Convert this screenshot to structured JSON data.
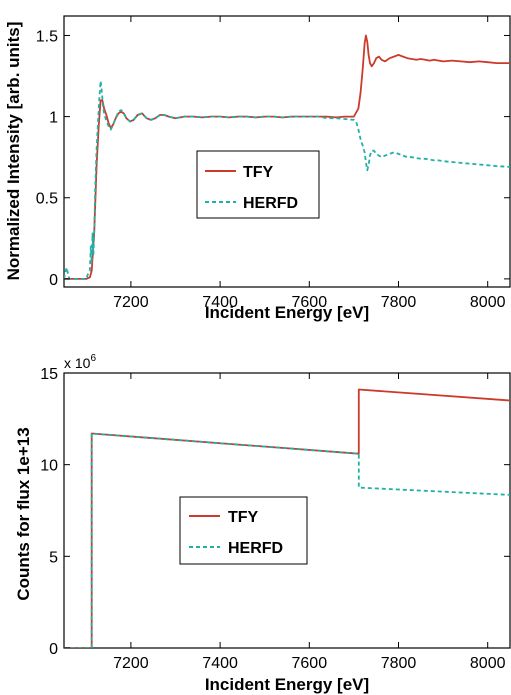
{
  "colors": {
    "tfy": "#cc3a2c",
    "herfd": "#21b0a4"
  },
  "chart_data": [
    {
      "type": "line",
      "title": "",
      "xlabel": "Incident Energy [eV]",
      "ylabel": "Normalized Intensity [arb. units]",
      "xlim": [
        7050,
        8050
      ],
      "ylim": [
        -0.05,
        1.62
      ],
      "xticks": [
        7200,
        7400,
        7600,
        7800,
        8000
      ],
      "xtick_labels": [
        "7200",
        "7400",
        "7600",
        "7800",
        "8000"
      ],
      "yticks": [
        0,
        0.5,
        1,
        1.5
      ],
      "ytick_labels": [
        "0",
        "0.5",
        "1",
        "1.5"
      ],
      "legend_position": "center",
      "grid": false,
      "series": [
        {
          "name": "TFY",
          "style": "solid",
          "color": "#cc3a2c",
          "x": [
            7050,
            7060,
            7070,
            7080,
            7090,
            7100,
            7108,
            7112,
            7118,
            7123,
            7128,
            7132,
            7136,
            7140,
            7145,
            7150,
            7155,
            7160,
            7166,
            7172,
            7178,
            7184,
            7190,
            7198,
            7206,
            7215,
            7225,
            7235,
            7245,
            7255,
            7265,
            7275,
            7285,
            7300,
            7320,
            7340,
            7360,
            7380,
            7400,
            7420,
            7440,
            7460,
            7480,
            7500,
            7520,
            7540,
            7560,
            7580,
            7600,
            7620,
            7640,
            7660,
            7680,
            7700,
            7710,
            7715,
            7720,
            7724,
            7727,
            7730,
            7733,
            7736,
            7740,
            7745,
            7750,
            7756,
            7762,
            7770,
            7780,
            7790,
            7800,
            7810,
            7820,
            7830,
            7840,
            7850,
            7860,
            7870,
            7880,
            7890,
            7900,
            7920,
            7940,
            7960,
            7980,
            8000,
            8020,
            8050
          ],
          "y": [
            0,
            0,
            0,
            0,
            0,
            0,
            0.01,
            0.05,
            0.3,
            0.7,
            0.95,
            1.1,
            1.1,
            1.05,
            1.01,
            0.96,
            0.93,
            0.95,
            0.99,
            1.02,
            1.03,
            1.02,
            0.99,
            0.97,
            0.98,
            1.01,
            1.02,
            0.99,
            0.98,
            0.99,
            1.01,
            1.01,
            1.0,
            0.99,
            1.0,
            1.0,
            0.995,
            1.0,
            1.0,
            0.995,
            1.0,
            1.0,
            0.995,
            1.0,
            1.0,
            0.995,
            1.0,
            1.0,
            1.0,
            1.0,
            1.0,
            0.995,
            1.0,
            1.0,
            1.05,
            1.15,
            1.3,
            1.45,
            1.5,
            1.46,
            1.38,
            1.33,
            1.31,
            1.33,
            1.36,
            1.37,
            1.35,
            1.34,
            1.36,
            1.37,
            1.38,
            1.37,
            1.36,
            1.355,
            1.35,
            1.355,
            1.35,
            1.345,
            1.35,
            1.345,
            1.34,
            1.345,
            1.34,
            1.335,
            1.34,
            1.335,
            1.33,
            1.33
          ]
        },
        {
          "name": "HERFD",
          "style": "dashed",
          "color": "#21b0a4",
          "x": [
            7050,
            7053,
            7056,
            7059,
            7062,
            7066,
            7070,
            7080,
            7090,
            7100,
            7105,
            7108,
            7110,
            7112,
            7114,
            7116,
            7118,
            7120,
            7123,
            7126,
            7129,
            7132,
            7135,
            7138,
            7142,
            7146,
            7150,
            7155,
            7160,
            7166,
            7172,
            7178,
            7184,
            7190,
            7198,
            7206,
            7215,
            7225,
            7235,
            7245,
            7255,
            7265,
            7275,
            7285,
            7300,
            7320,
            7340,
            7360,
            7380,
            7400,
            7420,
            7440,
            7460,
            7480,
            7500,
            7520,
            7540,
            7560,
            7580,
            7600,
            7620,
            7640,
            7660,
            7680,
            7700,
            7705,
            7710,
            7715,
            7720,
            7724,
            7727,
            7730,
            7733,
            7736,
            7740,
            7745,
            7750,
            7756,
            7762,
            7770,
            7780,
            7790,
            7800,
            7810,
            7820,
            7830,
            7840,
            7850,
            7860,
            7870,
            7880,
            7890,
            7900,
            7920,
            7940,
            7960,
            7980,
            8000,
            8020,
            8050
          ],
          "y": [
            0,
            0.04,
            0.07,
            0.03,
            0,
            0,
            0,
            0,
            0,
            0,
            0.04,
            0.05,
            0.2,
            0.1,
            0.28,
            0.15,
            0.3,
            0.55,
            0.8,
            0.95,
            1.1,
            1.22,
            1.15,
            1.05,
            1.0,
            0.97,
            0.94,
            0.92,
            0.95,
            0.99,
            1.03,
            1.04,
            1.02,
            0.99,
            0.97,
            0.98,
            1.01,
            1.02,
            0.99,
            0.98,
            0.99,
            1.01,
            1.01,
            1.0,
            0.99,
            1.0,
            1.0,
            0.995,
            1.0,
            1.0,
            0.995,
            1.0,
            1.0,
            0.995,
            1.0,
            1.0,
            0.995,
            1.0,
            1.0,
            1.0,
            1.0,
            0.99,
            0.99,
            0.985,
            0.98,
            0.97,
            0.92,
            0.86,
            0.82,
            0.78,
            0.72,
            0.67,
            0.7,
            0.76,
            0.79,
            0.79,
            0.77,
            0.76,
            0.75,
            0.76,
            0.77,
            0.78,
            0.77,
            0.76,
            0.75,
            0.75,
            0.745,
            0.74,
            0.74,
            0.735,
            0.73,
            0.73,
            0.725,
            0.72,
            0.715,
            0.71,
            0.705,
            0.7,
            0.695,
            0.69
          ]
        }
      ]
    },
    {
      "type": "line",
      "title": "",
      "xlabel": "Incident Energy [eV]",
      "ylabel": "Counts for flux  1e+13",
      "y_multiplier_label": "x 10",
      "y_multiplier_exponent": "6",
      "xlim": [
        7050,
        8050
      ],
      "ylim": [
        0,
        15
      ],
      "xticks": [
        7200,
        7400,
        7600,
        7800,
        8000
      ],
      "xtick_labels": [
        "7200",
        "7400",
        "7600",
        "7800",
        "8000"
      ],
      "yticks": [
        0,
        5,
        10,
        15
      ],
      "ytick_labels": [
        "0",
        "5",
        "10",
        "15"
      ],
      "legend_position": "center",
      "grid": false,
      "series": [
        {
          "name": "TFY",
          "style": "solid",
          "color": "#cc3a2c",
          "x": [
            7050,
            7111,
            7112,
            7112.01,
            7711,
            7711.01,
            8050
          ],
          "y": [
            0,
            0,
            0,
            11.7,
            10.6,
            14.1,
            13.5
          ]
        },
        {
          "name": "HERFD",
          "style": "dashed",
          "color": "#21b0a4",
          "x": [
            7050,
            7111,
            7112,
            7112.01,
            7711,
            7711.01,
            8050
          ],
          "y": [
            0,
            0,
            0,
            11.7,
            10.6,
            8.75,
            8.35
          ]
        }
      ]
    }
  ]
}
